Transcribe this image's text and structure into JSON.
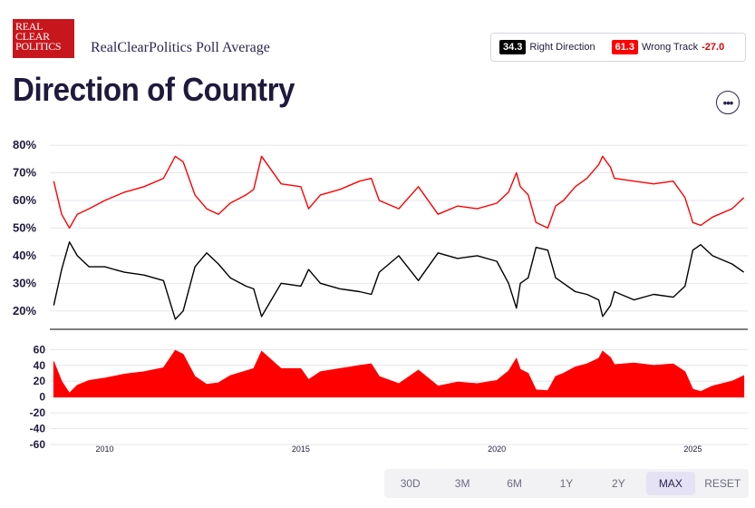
{
  "logo": {
    "line1": "REAL",
    "line2": "CLEAR",
    "line3": "POLITICS"
  },
  "source_title": "RealClearPolitics Poll Average",
  "legend": {
    "right_value": "34.3",
    "right_label": "Right Direction",
    "wrong_value": "61.3",
    "wrong_label": "Wrong Track",
    "spread": "-27.0"
  },
  "page_title": "Direction of Country",
  "more_label": "•••",
  "range_buttons": [
    {
      "label": "30D",
      "active": false
    },
    {
      "label": "3M",
      "active": false
    },
    {
      "label": "6M",
      "active": false
    },
    {
      "label": "1Y",
      "active": false
    },
    {
      "label": "2Y",
      "active": false
    },
    {
      "label": "MAX",
      "active": true
    },
    {
      "label": "RESET",
      "active": false
    }
  ],
  "colors": {
    "right_direction": "#000000",
    "wrong_track": "#ff0000",
    "spread_fill": "#ff0000"
  },
  "chart_data": {
    "type": "line",
    "x_range": [
      2008.6,
      2026.4
    ],
    "x_ticks": [
      2010,
      2015,
      2020,
      2025
    ],
    "x_tick_labels": [
      "2010",
      "2015",
      "2020",
      "2025"
    ],
    "y_range": [
      15,
      82
    ],
    "y_ticks": [
      20,
      30,
      40,
      50,
      60,
      70,
      80
    ],
    "y_tick_labels": [
      "20%",
      "30%",
      "40%",
      "50%",
      "60%",
      "70%",
      "80%"
    ],
    "series": [
      {
        "key": "wrong_track",
        "x": [
          2008.7,
          2008.9,
          2009.1,
          2009.3,
          2009.6,
          2010.0,
          2010.5,
          2011.0,
          2011.5,
          2011.8,
          2012.0,
          2012.3,
          2012.6,
          2012.9,
          2013.2,
          2013.6,
          2013.8,
          2014.0,
          2014.5,
          2015.0,
          2015.2,
          2015.5,
          2016.0,
          2016.5,
          2016.8,
          2017.0,
          2017.5,
          2018.0,
          2018.5,
          2019.0,
          2019.5,
          2020.0,
          2020.3,
          2020.5,
          2020.6,
          2020.8,
          2021.0,
          2021.3,
          2021.5,
          2021.7,
          2022.0,
          2022.3,
          2022.6,
          2022.7,
          2022.9,
          2023.0,
          2023.5,
          2024.0,
          2024.5,
          2024.8,
          2025.0,
          2025.2,
          2025.5,
          2026.0,
          2026.3
        ],
        "y": [
          67,
          55,
          50,
          55,
          57,
          60,
          63,
          65,
          68,
          76,
          74,
          62,
          57,
          55,
          59,
          62,
          64,
          76,
          66,
          65,
          57,
          62,
          64,
          67,
          68,
          60,
          57,
          65,
          55,
          58,
          57,
          59,
          63,
          70,
          65,
          62,
          52,
          50,
          58,
          60,
          65,
          68,
          73,
          76,
          72,
          68,
          67,
          66,
          67,
          61,
          52,
          51,
          54,
          57,
          61
        ]
      },
      {
        "key": "right_direction",
        "x": [
          2008.7,
          2008.9,
          2009.1,
          2009.3,
          2009.6,
          2010.0,
          2010.5,
          2011.0,
          2011.5,
          2011.8,
          2012.0,
          2012.3,
          2012.6,
          2012.9,
          2013.2,
          2013.6,
          2013.8,
          2014.0,
          2014.5,
          2015.0,
          2015.2,
          2015.5,
          2016.0,
          2016.5,
          2016.8,
          2017.0,
          2017.5,
          2018.0,
          2018.5,
          2019.0,
          2019.5,
          2020.0,
          2020.3,
          2020.5,
          2020.6,
          2020.8,
          2021.0,
          2021.3,
          2021.5,
          2021.7,
          2022.0,
          2022.3,
          2022.6,
          2022.7,
          2022.9,
          2023.0,
          2023.5,
          2024.0,
          2024.5,
          2024.8,
          2025.0,
          2025.2,
          2025.5,
          2026.0,
          2026.3
        ],
        "y": [
          22,
          35,
          45,
          40,
          36,
          36,
          34,
          33,
          31,
          17,
          20,
          36,
          41,
          37,
          32,
          29,
          28,
          18,
          30,
          29,
          35,
          30,
          28,
          27,
          26,
          34,
          40,
          31,
          41,
          39,
          40,
          38,
          30,
          21,
          30,
          32,
          43,
          42,
          32,
          30,
          27,
          26,
          24,
          18,
          22,
          27,
          24,
          26,
          25,
          29,
          42,
          44,
          40,
          37,
          34
        ]
      }
    ]
  },
  "spread_chart_data": {
    "type": "area",
    "y_range": [
      -60,
      65
    ],
    "y_ticks": [
      60,
      40,
      20,
      0,
      -20,
      -40,
      -60
    ],
    "y_tick_labels": [
      "60",
      "40",
      "20",
      "0",
      "-20",
      "-40",
      "-60"
    ],
    "x": [
      2008.7,
      2008.9,
      2009.1,
      2009.3,
      2009.6,
      2010.0,
      2010.5,
      2011.0,
      2011.5,
      2011.8,
      2012.0,
      2012.3,
      2012.6,
      2012.9,
      2013.2,
      2013.6,
      2013.8,
      2014.0,
      2014.5,
      2015.0,
      2015.2,
      2015.5,
      2016.0,
      2016.5,
      2016.8,
      2017.0,
      2017.5,
      2018.0,
      2018.5,
      2019.0,
      2019.5,
      2020.0,
      2020.3,
      2020.5,
      2020.6,
      2020.8,
      2021.0,
      2021.3,
      2021.5,
      2021.7,
      2022.0,
      2022.3,
      2022.6,
      2022.7,
      2022.9,
      2023.0,
      2023.5,
      2024.0,
      2024.5,
      2024.8,
      2025.0,
      2025.2,
      2025.5,
      2026.0,
      2026.3
    ],
    "y": [
      45,
      20,
      5,
      15,
      21,
      24,
      29,
      32,
      37,
      59,
      54,
      26,
      16,
      18,
      27,
      33,
      36,
      58,
      36,
      36,
      22,
      32,
      36,
      40,
      42,
      26,
      17,
      34,
      14,
      19,
      17,
      21,
      33,
      49,
      35,
      30,
      9,
      8,
      26,
      30,
      38,
      42,
      49,
      58,
      50,
      41,
      43,
      40,
      42,
      32,
      10,
      7,
      14,
      20,
      27
    ]
  }
}
